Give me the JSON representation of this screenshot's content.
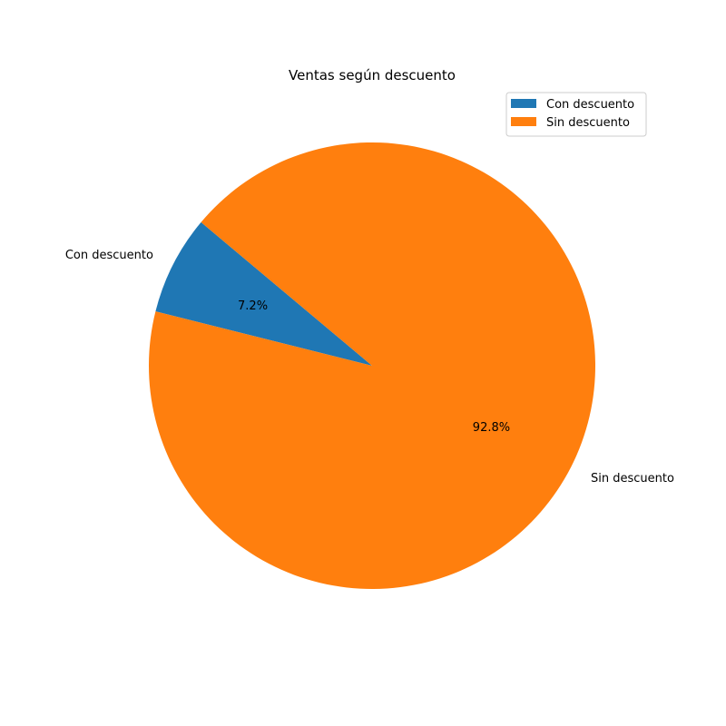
{
  "chart_data": {
    "type": "pie",
    "title": "Ventas según descuento",
    "categories": [
      "Con descuento",
      "Sin descuento"
    ],
    "values": [
      7.2,
      92.8
    ],
    "percent_labels": [
      "7.2%",
      "92.8%"
    ],
    "colors": [
      "#1f77b4",
      "#ff7f0e"
    ],
    "legend": {
      "placement": "top-right",
      "entries": [
        "Con descuento",
        "Sin descuento"
      ]
    }
  }
}
